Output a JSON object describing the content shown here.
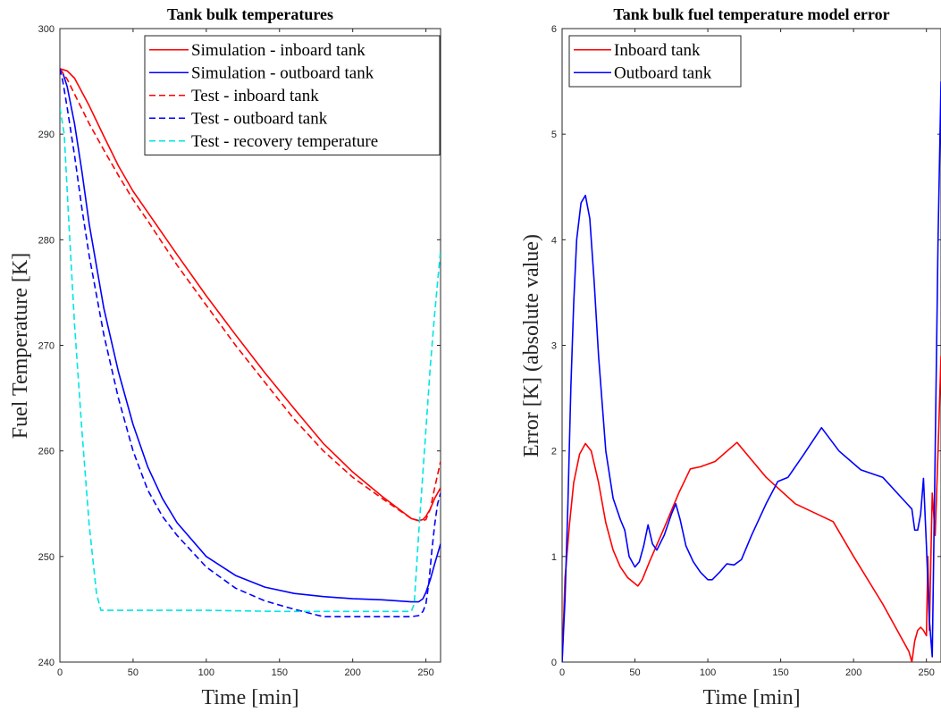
{
  "chart_data": [
    {
      "type": "line",
      "title": "Tank bulk temperatures",
      "xlabel": "Time [min]",
      "ylabel": "Fuel Temperature [K]",
      "xlim": [
        0,
        260
      ],
      "ylim": [
        240,
        300
      ],
      "xticks": [
        0,
        50,
        100,
        150,
        200,
        250
      ],
      "yticks": [
        240,
        250,
        260,
        270,
        280,
        290,
        300
      ],
      "grid": false,
      "legend_position": "top-right",
      "series": [
        {
          "name": "Simulation - inboard tank",
          "color": "#ff0000",
          "dash": "solid",
          "x": [
            0,
            5,
            10,
            20,
            30,
            40,
            50,
            60,
            80,
            100,
            120,
            140,
            160,
            180,
            200,
            220,
            240,
            245,
            248,
            250,
            253,
            256,
            260
          ],
          "y": [
            296.2,
            296.0,
            295.3,
            292.7,
            289.8,
            287.0,
            284.6,
            282.6,
            278.6,
            274.7,
            271.0,
            267.4,
            264.0,
            260.7,
            258.0,
            255.7,
            253.6,
            253.4,
            253.5,
            253.8,
            254.5,
            255.5,
            256.5
          ]
        },
        {
          "name": "Simulation - outboard tank",
          "color": "#0000ff",
          "dash": "solid",
          "x": [
            0,
            2,
            5,
            10,
            15,
            20,
            30,
            40,
            50,
            60,
            70,
            80,
            100,
            120,
            140,
            160,
            180,
            200,
            220,
            240,
            245,
            248,
            250,
            253,
            256,
            260
          ],
          "y": [
            296.2,
            295.8,
            294.5,
            291.0,
            286.5,
            281.5,
            273.5,
            267.5,
            262.5,
            258.5,
            255.5,
            253.2,
            250.0,
            248.2,
            247.1,
            246.5,
            246.2,
            246.0,
            245.9,
            245.7,
            245.7,
            246.0,
            246.6,
            247.8,
            249.3,
            251.2
          ]
        },
        {
          "name": "Test - inboard tank",
          "color": "#ff0000",
          "dash": "dashed",
          "x": [
            0,
            5,
            10,
            20,
            30,
            40,
            50,
            60,
            80,
            100,
            120,
            140,
            160,
            180,
            200,
            220,
            240,
            245,
            248,
            250,
            253,
            256,
            260
          ],
          "y": [
            296.2,
            295.2,
            293.8,
            291.0,
            288.5,
            286.1,
            283.8,
            281.8,
            277.6,
            273.8,
            270.0,
            266.5,
            263.0,
            260.0,
            257.5,
            255.5,
            253.6,
            253.4,
            253.4,
            253.5,
            254.5,
            256.5,
            259.0
          ]
        },
        {
          "name": "Test - outboard tank",
          "color": "#0000ff",
          "dash": "dashed",
          "x": [
            0,
            2,
            5,
            10,
            15,
            20,
            30,
            40,
            50,
            60,
            70,
            80,
            100,
            120,
            140,
            160,
            180,
            200,
            220,
            240,
            245,
            248,
            250,
            252,
            254,
            256,
            258,
            260
          ],
          "y": [
            296.2,
            295.0,
            292.5,
            288.0,
            283.0,
            278.5,
            271.0,
            265.0,
            260.0,
            256.3,
            253.8,
            252.0,
            249.0,
            247.0,
            245.8,
            245.0,
            244.3,
            244.3,
            244.3,
            244.3,
            244.4,
            244.8,
            245.5,
            247.5,
            250.5,
            253.0,
            255.0,
            256.0
          ]
        },
        {
          "name": "Test - recovery temperature",
          "color": "#00e5e5",
          "dash": "dashed",
          "x": [
            0,
            3,
            6,
            10,
            15,
            20,
            25,
            28,
            50,
            100,
            150,
            200,
            240,
            242,
            245,
            248,
            250,
            253,
            256,
            260
          ],
          "y": [
            292.5,
            290.0,
            282.0,
            272.0,
            262.0,
            253.0,
            246.5,
            244.9,
            244.9,
            244.9,
            244.8,
            244.8,
            244.8,
            245.5,
            252.0,
            258.0,
            262.0,
            268.0,
            273.0,
            279.0
          ]
        }
      ]
    },
    {
      "type": "line",
      "title": "Tank bulk fuel temperature model error",
      "xlabel": "Time [min]",
      "ylabel": "Error [K] (absolute value)",
      "xlim": [
        0,
        260
      ],
      "ylim": [
        0,
        6
      ],
      "xticks": [
        0,
        50,
        100,
        150,
        200,
        250
      ],
      "yticks": [
        0,
        1,
        2,
        3,
        4,
        5,
        6
      ],
      "grid": false,
      "legend_position": "top-left",
      "series": [
        {
          "name": "Inboard tank",
          "color": "#ff0000",
          "dash": "solid",
          "x": [
            0,
            2,
            5,
            8,
            12,
            16,
            20,
            25,
            30,
            35,
            40,
            45,
            52,
            55,
            60,
            70,
            80,
            88,
            95,
            105,
            120,
            140,
            160,
            186,
            200,
            220,
            238,
            240,
            242,
            244,
            246,
            248,
            250,
            251,
            252,
            254,
            256,
            258,
            260
          ],
          "y": [
            0.0,
            0.8,
            1.3,
            1.7,
            1.97,
            2.07,
            2.0,
            1.7,
            1.32,
            1.06,
            0.9,
            0.8,
            0.72,
            0.78,
            0.95,
            1.27,
            1.6,
            1.83,
            1.85,
            1.9,
            2.08,
            1.75,
            1.5,
            1.33,
            1.0,
            0.55,
            0.1,
            0.0,
            0.2,
            0.3,
            0.33,
            0.3,
            0.25,
            1.0,
            0.3,
            1.6,
            1.2,
            2.0,
            2.9
          ]
        },
        {
          "name": "Outboard tank",
          "color": "#0000ff",
          "dash": "solid",
          "x": [
            0,
            2,
            4,
            6,
            8,
            10,
            13,
            16,
            19,
            22,
            25,
            30,
            35,
            40,
            43,
            46,
            50,
            53,
            56,
            59,
            62,
            65,
            70,
            75,
            78,
            81,
            85,
            90,
            95,
            100,
            103,
            108,
            113,
            118,
            123,
            130,
            140,
            148,
            155,
            165,
            178,
            190,
            205,
            220,
            240,
            242,
            244,
            246,
            248,
            250,
            252,
            254,
            256,
            258,
            260
          ],
          "y": [
            0.0,
            0.6,
            1.5,
            2.6,
            3.4,
            4.0,
            4.35,
            4.42,
            4.2,
            3.6,
            2.9,
            2.0,
            1.55,
            1.35,
            1.25,
            1.0,
            0.9,
            0.95,
            1.1,
            1.3,
            1.12,
            1.06,
            1.2,
            1.4,
            1.5,
            1.35,
            1.1,
            0.95,
            0.85,
            0.78,
            0.78,
            0.85,
            0.93,
            0.92,
            0.97,
            1.2,
            1.5,
            1.71,
            1.75,
            1.95,
            2.22,
            2.0,
            1.82,
            1.75,
            1.45,
            1.25,
            1.25,
            1.4,
            1.74,
            1.1,
            0.4,
            0.05,
            2.0,
            4.0,
            5.5
          ]
        }
      ]
    }
  ]
}
